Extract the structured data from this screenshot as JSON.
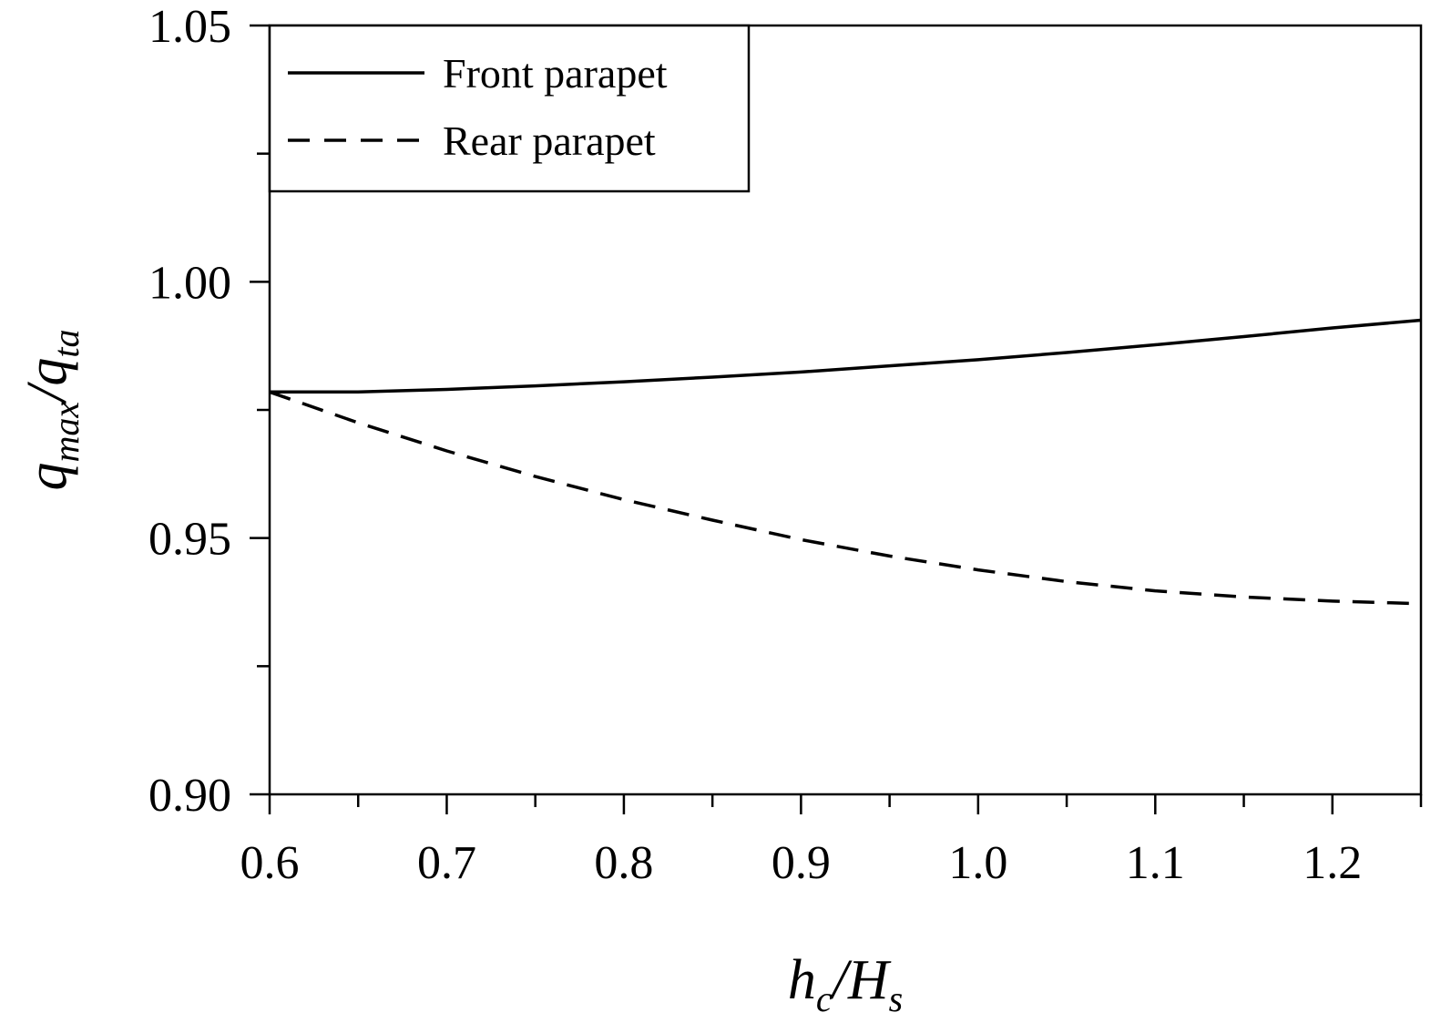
{
  "chart_data": {
    "type": "line",
    "xlabel": {
      "main": "h",
      "sub": "c",
      "sep": "/",
      "main2": "H",
      "sub2": "s"
    },
    "ylabel": {
      "main": "q",
      "sub": "max",
      "sep": "/",
      "main2": "q",
      "sub2": "ta"
    },
    "xlim": [
      0.6,
      1.25
    ],
    "ylim": [
      0.9,
      1.05
    ],
    "x_ticks": [
      "0.6",
      "0.7",
      "0.8",
      "0.9",
      "1.0",
      "1.1",
      "1.2"
    ],
    "y_ticks": [
      "0.90",
      "0.95",
      "1.00",
      "1.05"
    ],
    "x_minor_step": 0.05,
    "y_minor_step": 0.025,
    "legend_position": "top-left",
    "grid": false,
    "series": [
      {
        "name": "Front parapet",
        "style": "solid",
        "color": "#000000",
        "x": [
          0.6,
          0.65,
          0.7,
          0.75,
          0.8,
          0.85,
          0.9,
          0.95,
          1.0,
          1.05,
          1.1,
          1.15,
          1.2,
          1.25
        ],
        "y": [
          0.9785,
          0.9785,
          0.979,
          0.9797,
          0.9805,
          0.9814,
          0.9824,
          0.9836,
          0.9848,
          0.9862,
          0.9877,
          0.9893,
          0.991,
          0.9925
        ]
      },
      {
        "name": "Rear parapet",
        "style": "dashed",
        "color": "#000000",
        "x": [
          0.6,
          0.65,
          0.7,
          0.75,
          0.8,
          0.85,
          0.9,
          0.95,
          1.0,
          1.05,
          1.1,
          1.15,
          1.2,
          1.25
        ],
        "y": [
          0.9785,
          0.9725,
          0.967,
          0.962,
          0.9575,
          0.9535,
          0.9497,
          0.9465,
          0.9438,
          0.9415,
          0.9397,
          0.9385,
          0.9377,
          0.9372
        ]
      }
    ]
  }
}
